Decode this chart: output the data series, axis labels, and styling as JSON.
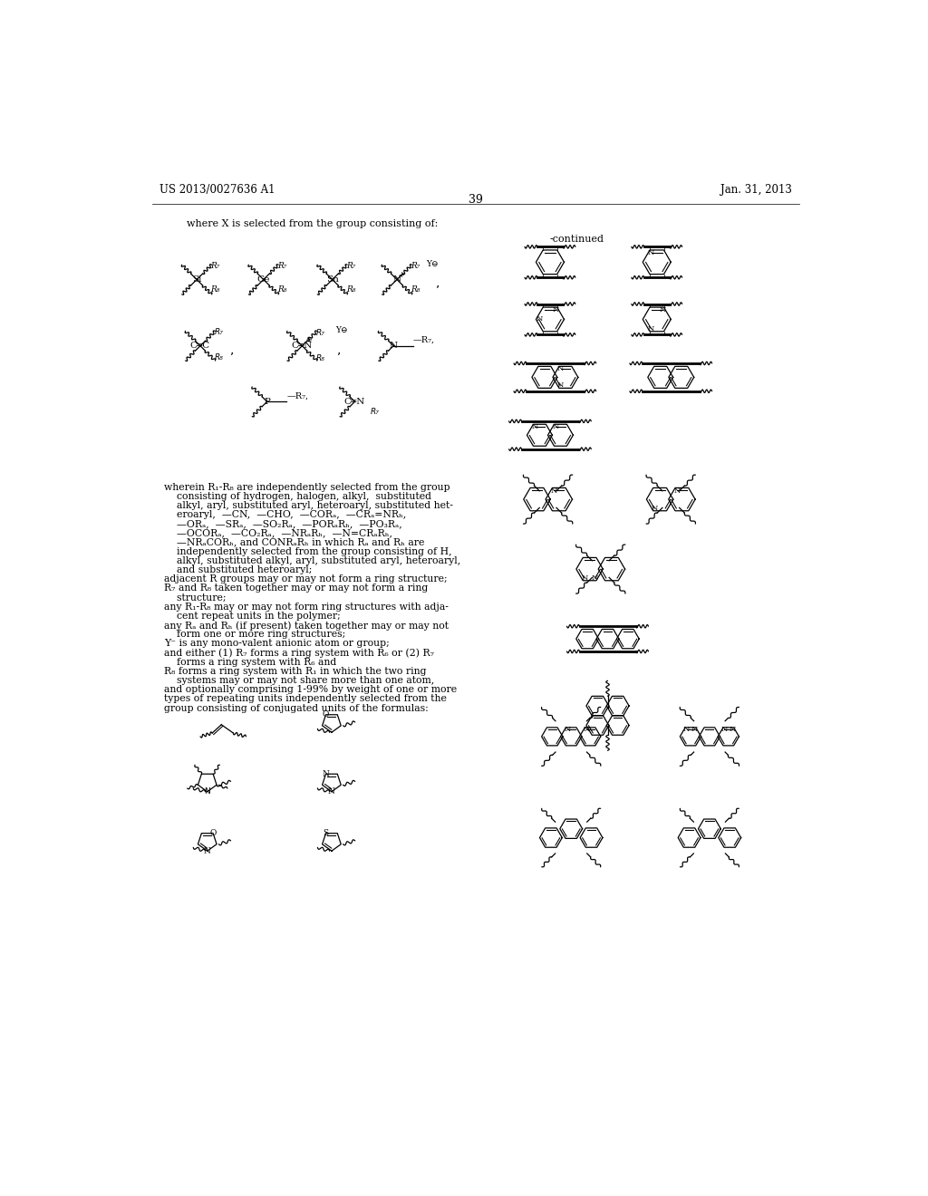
{
  "background_color": "#ffffff",
  "header_left": "US 2013/0027636 A1",
  "header_right": "Jan. 31, 2013",
  "page_number": "39",
  "label_left": "where X is selected from the group consisting of:",
  "label_right": "-continued"
}
